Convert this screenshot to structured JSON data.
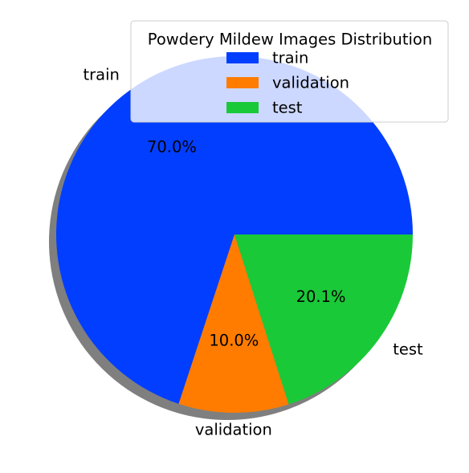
{
  "chart_data": {
    "type": "pie",
    "legend": {
      "title": "Powdery Mildew Images Distribution",
      "placement": "top-right"
    },
    "start_angle_deg": 0,
    "direction": "counterclockwise",
    "shadow": true,
    "slices": [
      {
        "label": "train",
        "value": 70.0,
        "pct_label": "70.0%",
        "color": "#023eff"
      },
      {
        "label": "validation",
        "value": 10.0,
        "pct_label": "10.0%",
        "color": "#ff7c00"
      },
      {
        "label": "test",
        "value": 20.1,
        "pct_label": "20.1%",
        "color": "#1ac938"
      }
    ]
  }
}
